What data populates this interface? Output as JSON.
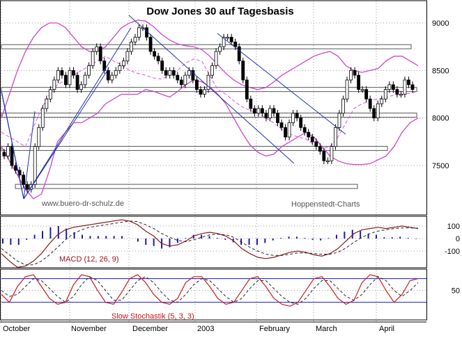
{
  "chart_data": {
    "type": "candlestick",
    "title": "Dow Jones 30 auf Tagesbasis",
    "watermark_left": "www.buero-dr-schulz.de",
    "watermark_right": "Hoppenstedt-Charts",
    "x_tick_labels": [
      "October",
      "November",
      "December",
      "2003",
      "February",
      "March",
      "April"
    ],
    "price": {
      "y_tick_labels": [
        "9000",
        "8500",
        "8000",
        "7500"
      ],
      "ylim": [
        7050,
        9250
      ],
      "grid": true,
      "close_series": [
        7600,
        7700,
        7500,
        7450,
        7400,
        7300,
        7250,
        7300,
        7700,
        7900,
        8100,
        8200,
        8300,
        8400,
        8500,
        8450,
        8350,
        8500,
        8450,
        8300,
        8350,
        8450,
        8550,
        8700,
        8750,
        8600,
        8500,
        8400,
        8450,
        8500,
        8550,
        8600,
        8700,
        8800,
        8850,
        8950,
        8950,
        8850,
        8700,
        8650,
        8600,
        8500,
        8450,
        8500,
        8450,
        8400,
        8350,
        8450,
        8500,
        8400,
        8300,
        8250,
        8300,
        8450,
        8550,
        8700,
        8750,
        8850,
        8850,
        8800,
        8750,
        8600,
        8400,
        8200,
        8100,
        8050,
        8100,
        8050,
        8000,
        8100,
        8050,
        7950,
        7900,
        7800,
        7950,
        8050,
        8000,
        7900,
        7850,
        7800,
        7750,
        7700,
        7650,
        7550,
        7550,
        7700,
        7900,
        8050,
        8200,
        8400,
        8500,
        8450,
        8300,
        8300,
        8200,
        8100,
        8000,
        8150,
        8200,
        8300,
        8350,
        8300,
        8250,
        8250,
        8400,
        8350,
        8300
      ],
      "bollinger_upper": [
        8000,
        8250,
        8500,
        8700,
        8850,
        8950,
        9000,
        9000,
        8950,
        8850,
        8750,
        8700,
        8700,
        8750,
        8850,
        8950,
        9000,
        9030,
        9020,
        8960,
        8880,
        8820,
        8780,
        8760,
        8750,
        8720,
        8650,
        8560,
        8470,
        8400,
        8350,
        8320,
        8300,
        8320,
        8380,
        8450,
        8500,
        8550,
        8600,
        8650,
        8680,
        8700,
        8650,
        8550,
        8500,
        8480,
        8500,
        8520,
        8600,
        8650,
        8650,
        8600,
        8550
      ],
      "bollinger_lower": [
        7700,
        7550,
        7400,
        7250,
        7150,
        7200,
        7450,
        7750,
        7850,
        7950,
        7950,
        8000,
        8050,
        8150,
        8200,
        8250,
        8250,
        8250,
        8300,
        8280,
        8250,
        8220,
        8280,
        8350,
        8400,
        8380,
        8330,
        8250,
        8150,
        8000,
        7850,
        7720,
        7640,
        7600,
        7620,
        7700,
        7750,
        7800,
        7850,
        7800,
        7700,
        7600,
        7550,
        7520,
        7510,
        7510,
        7520,
        7560,
        7600,
        7700,
        7850,
        7950,
        8000
      ],
      "moving_average": [
        7850,
        7800,
        7750,
        7700,
        7900,
        8100,
        8250,
        8350,
        8400,
        8450,
        8500,
        8550,
        8600,
        8650,
        8600,
        8560,
        8500,
        8470,
        8450,
        8420,
        8410,
        8450,
        8500,
        8580,
        8620,
        8600,
        8450,
        8300,
        8250,
        8180,
        8120,
        8080,
        8050,
        8000,
        7950,
        7880,
        7830,
        7800,
        7780,
        7720,
        7680,
        7700,
        7800,
        7950,
        8100,
        8150,
        8180,
        8200,
        8220,
        8240,
        8250,
        8260,
        8280
      ],
      "horizontal_levels": [
        8750,
        8300,
        8030,
        7680,
        7280
      ],
      "trendlines_note": "fan of trendlines from October low; downtrend lines from December and January highs"
    },
    "macd": {
      "label": "MACD (12, 26, 9)",
      "y_tick_labels": [
        "100",
        "0",
        "-100"
      ],
      "ylim": [
        -250,
        200
      ],
      "macd_line": [
        -120,
        -180,
        -230,
        -220,
        -180,
        -120,
        -40,
        30,
        70,
        90,
        100,
        110,
        120,
        130,
        140,
        150,
        140,
        110,
        60,
        20,
        -40,
        -60,
        -50,
        -20,
        20,
        40,
        50,
        40,
        20,
        -20,
        -80,
        -120,
        -150,
        -160,
        -150,
        -130,
        -110,
        -100,
        -110,
        -130,
        -140,
        -120,
        -80,
        -20,
        40,
        70,
        80,
        90,
        80,
        90,
        100,
        90,
        80
      ],
      "signal_line": [
        -80,
        -130,
        -180,
        -210,
        -210,
        -180,
        -130,
        -70,
        -10,
        40,
        70,
        90,
        100,
        110,
        120,
        130,
        140,
        135,
        110,
        80,
        40,
        10,
        -15,
        -25,
        -10,
        10,
        30,
        35,
        30,
        10,
        -30,
        -70,
        -100,
        -125,
        -135,
        -135,
        -125,
        -115,
        -115,
        -120,
        -125,
        -125,
        -110,
        -75,
        -30,
        10,
        40,
        60,
        70,
        80,
        85,
        85,
        83
      ],
      "histogram": [
        -40,
        -50,
        -50,
        -10,
        30,
        60,
        90,
        100,
        80,
        50,
        30,
        20,
        20,
        20,
        20,
        20,
        0,
        -25,
        -50,
        -60,
        -80,
        -70,
        -35,
        5,
        30,
        30,
        20,
        5,
        -10,
        -30,
        -50,
        -50,
        -50,
        -35,
        -15,
        5,
        15,
        15,
        5,
        -10,
        -15,
        5,
        30,
        55,
        70,
        60,
        40,
        30,
        10,
        10,
        15,
        5,
        -3
      ]
    },
    "stochastic": {
      "label": "Slow Stochastik (5, 3, 3)",
      "y_tick_labels": [
        "50"
      ],
      "ylim": [
        0,
        100
      ],
      "upper_band": 80,
      "lower_band": 20,
      "k_line": [
        40,
        20,
        60,
        85,
        90,
        60,
        30,
        15,
        20,
        65,
        90,
        85,
        50,
        20,
        15,
        45,
        80,
        90,
        70,
        40,
        20,
        15,
        30,
        70,
        85,
        85,
        60,
        30,
        15,
        20,
        50,
        80,
        85,
        60,
        30,
        15,
        10,
        20,
        50,
        80,
        85,
        60,
        30,
        15,
        25,
        70,
        90,
        85,
        50,
        20,
        40,
        75,
        80
      ],
      "d_line": [
        50,
        35,
        40,
        60,
        80,
        75,
        55,
        35,
        20,
        35,
        65,
        85,
        75,
        50,
        25,
        25,
        50,
        75,
        85,
        70,
        45,
        25,
        20,
        40,
        65,
        80,
        75,
        55,
        35,
        20,
        30,
        55,
        75,
        75,
        55,
        35,
        20,
        15,
        30,
        55,
        75,
        75,
        55,
        35,
        25,
        40,
        65,
        85,
        75,
        50,
        35,
        50,
        70
      ]
    }
  }
}
